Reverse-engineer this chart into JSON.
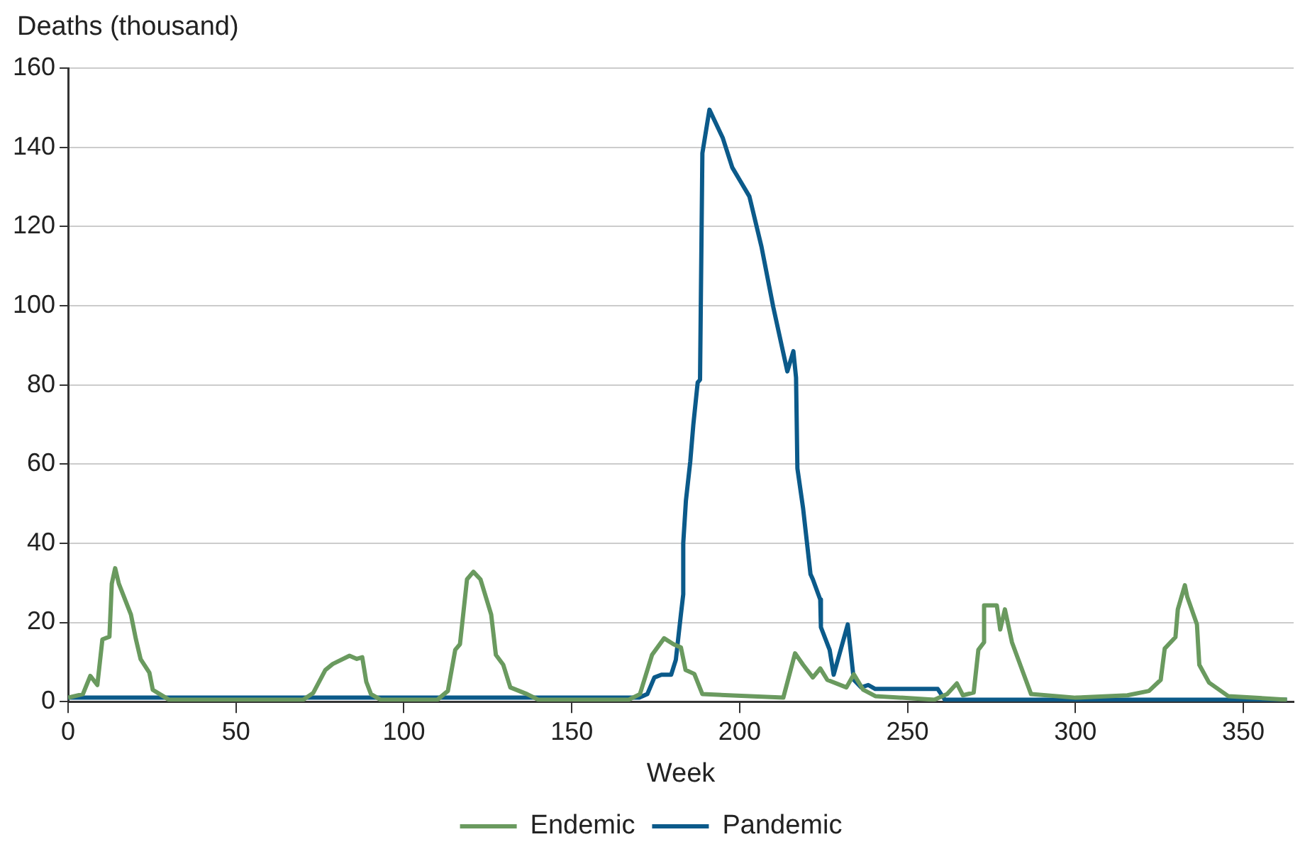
{
  "chart_data": {
    "type": "line",
    "ylabel": "Deaths (thousand)",
    "xlabel": "Week",
    "xlim": [
      0,
      365
    ],
    "xticks": [
      0,
      50,
      100,
      150,
      200,
      250,
      300,
      350
    ],
    "ylim": [
      0,
      160
    ],
    "yticks": [
      0,
      20,
      40,
      60,
      80,
      100,
      120,
      140,
      160
    ],
    "grid": "y",
    "legend": "bottom",
    "marker": "none",
    "line_style": "solid",
    "series": [
      {
        "name": "Endemic",
        "color": "#6a9a5f",
        "x": [
          0,
          4.4,
          6.6,
          8.7,
          10.2,
          12.3,
          13,
          14,
          15.1,
          18.7,
          20.2,
          21.6,
          24.2,
          25.2,
          27.3,
          30,
          70,
          73,
          76.6,
          78.8,
          83.8,
          86,
          87.6,
          88.8,
          90.2,
          93,
          110,
          113.1,
          115.3,
          116.7,
          118.8,
          120.7,
          122.8,
          126,
          127.4,
          129.6,
          131.7,
          136.7,
          140,
          167,
          170.3,
          173.9,
          177.5,
          180.3,
          182.5,
          183.9,
          186.5,
          188.9,
          213,
          216.5,
          218.9,
          221.8,
          224,
          226.1,
          231.8,
          234,
          236.8,
          240.4,
          258,
          261.8,
          264.7,
          266.5,
          269.7,
          271.1,
          272.8,
          272.8,
          276.6,
          277.6,
          279,
          281.1,
          284.7,
          286.8,
          300,
          315.5,
          321.9,
          325.4,
          326.6,
          329.8,
          330.5,
          332.6,
          333.3,
          336.2,
          336.9,
          339.8,
          345.5,
          363
        ],
        "values": [
          1,
          1.9,
          6.5,
          4.2,
          15.7,
          16.4,
          29.8,
          33.7,
          29.8,
          22,
          15.7,
          10.7,
          7.3,
          3,
          1.9,
          0.5,
          0.5,
          2.2,
          8,
          9.5,
          11.6,
          10.8,
          11.2,
          5,
          1.9,
          0.5,
          0.5,
          2.7,
          13.1,
          14.5,
          30.9,
          32.8,
          30.9,
          22,
          11.8,
          9.3,
          3.6,
          1.9,
          0.5,
          0.5,
          1.9,
          11.8,
          16,
          14.5,
          13.7,
          8,
          7,
          1.9,
          1,
          12.2,
          9.3,
          6.1,
          8.4,
          5.5,
          3.6,
          6.9,
          3,
          1.4,
          0.5,
          1.9,
          4.6,
          1.6,
          2.3,
          13.1,
          15,
          24.3,
          24.3,
          18.2,
          23.3,
          15,
          6.7,
          1.9,
          1,
          1.6,
          2.7,
          5.5,
          13.4,
          16.3,
          23.3,
          29.4,
          26.5,
          19.5,
          9.3,
          4.8,
          1.4,
          0.5
        ]
      },
      {
        "name": "Pandemic",
        "color": "#0b5a8a",
        "x": [
          0,
          170,
          172.5,
          174.6,
          176.7,
          179.6,
          181,
          182.5,
          183.2,
          183.2,
          184,
          185.3,
          186.2,
          187.5,
          188.2,
          188.9,
          191,
          195,
          197.8,
          202.9,
          206.5,
          210,
          214.2,
          216,
          216.8,
          217.2,
          218.9,
          221.1,
          221.8,
          224,
          224.2,
          226.8,
          228,
          232.2,
          234,
          236.2,
          238.3,
          240.4,
          259,
          261.1,
          363
        ],
        "values": [
          1,
          1,
          1.9,
          6.1,
          6.8,
          6.8,
          10.6,
          22,
          27.1,
          40,
          50.8,
          60.7,
          69.9,
          80.6,
          81.3,
          138.5,
          149.5,
          142.3,
          134.9,
          127.6,
          114.9,
          99.7,
          83.4,
          88.5,
          81.8,
          58.9,
          48.8,
          32.2,
          30.9,
          25.8,
          18.8,
          13.1,
          6.8,
          19.5,
          5.5,
          3.6,
          4.2,
          3.2,
          3.2,
          0.5,
          0.5
        ]
      }
    ]
  }
}
